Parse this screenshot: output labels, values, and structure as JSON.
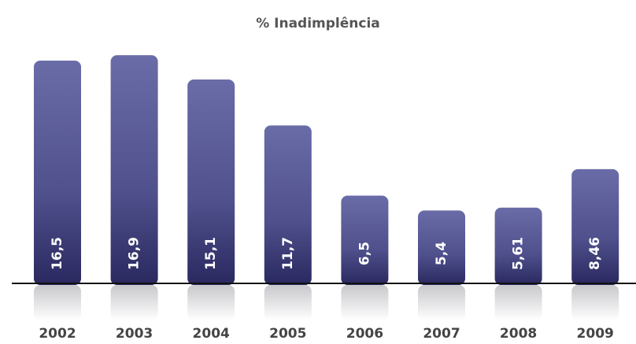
{
  "chart_data": {
    "type": "bar",
    "title": "% Inadimplência",
    "categories": [
      "2002",
      "2003",
      "2004",
      "2005",
      "2006",
      "2007",
      "2008",
      "2009"
    ],
    "values": [
      16.5,
      16.9,
      15.1,
      11.7,
      6.5,
      5.4,
      5.61,
      8.46
    ],
    "value_labels": [
      "16,5",
      "16,9",
      "15,1",
      "11,7",
      "6,5",
      "5,4",
      "5,61",
      "8,46"
    ],
    "color": "#5f619c"
  }
}
